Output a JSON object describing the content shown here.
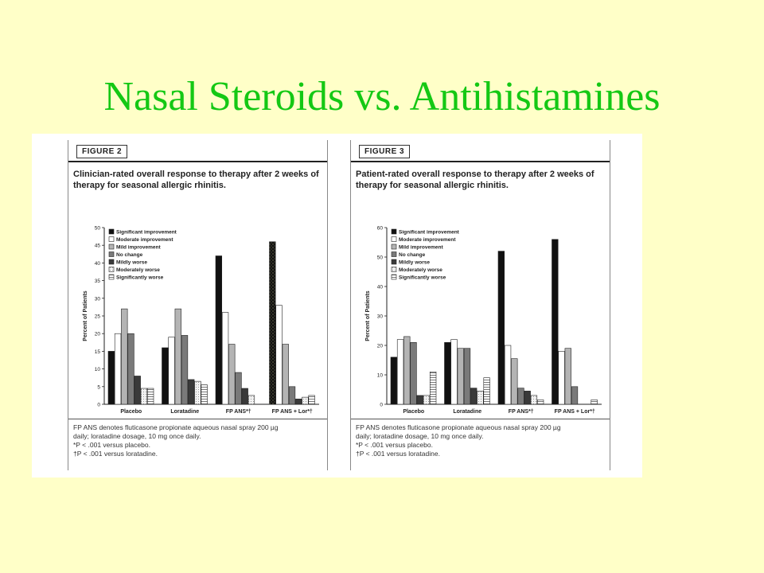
{
  "slide_title": "Nasal Steroids vs. Antihistamines",
  "colors": {
    "background": "#ffffc8",
    "title": "#14c814"
  },
  "figures": [
    {
      "tag": "FIGURE 2",
      "caption": "Clinician-rated overall response to therapy after 2 weeks of therapy for seasonal allergic rhinitis.",
      "footnotes": [
        "FP ANS denotes fluticasone propionate aqueous nasal spray 200 µg",
        "daily; loratadine dosage, 10 mg once daily.",
        "*P < .001 versus placebo.",
        "†P < .001 versus loratadine."
      ]
    },
    {
      "tag": "FIGURE 3",
      "caption": "Patient-rated overall response to therapy after 2 weeks of therapy for seasonal allergic rhinitis.",
      "footnotes": [
        "FP ANS denotes fluticasone propionate aqueous nasal spray 200 µg",
        "daily; loratadine dosage, 10 mg once daily.",
        "*P < .001 versus placebo.",
        "†P < .001 versus loratadine."
      ]
    }
  ],
  "chart_data": [
    {
      "type": "bar",
      "ylabel": "Percent of Patients",
      "ylim": [
        0,
        50
      ],
      "yticks": [
        0,
        5,
        10,
        15,
        20,
        25,
        30,
        35,
        40,
        45,
        50
      ],
      "legend_position": "top-left",
      "categories": [
        "Placebo",
        "Loratadine",
        "FP ANS*†",
        "FP ANS + Lor*†"
      ],
      "series": [
        {
          "name": "Significant improvement",
          "values": [
            15,
            16,
            42,
            46
          ]
        },
        {
          "name": "Moderate improvement",
          "values": [
            20,
            19,
            26,
            28
          ]
        },
        {
          "name": "Mild improvement",
          "values": [
            27,
            27,
            17,
            17
          ]
        },
        {
          "name": "No change",
          "values": [
            20,
            19.5,
            9,
            5
          ]
        },
        {
          "name": "Mildly worse",
          "values": [
            8,
            7,
            4.5,
            1.5
          ]
        },
        {
          "name": "Moderately worse",
          "values": [
            4.5,
            6.5,
            2.5,
            2
          ]
        },
        {
          "name": "Significantly worse",
          "values": [
            4.5,
            5.5,
            0,
            2.5
          ]
        }
      ]
    },
    {
      "type": "bar",
      "ylabel": "Percent of Patients",
      "ylim": [
        0,
        60
      ],
      "yticks": [
        0,
        10,
        20,
        30,
        40,
        50,
        60
      ],
      "legend_position": "top-left",
      "categories": [
        "Placebo",
        "Loratadine",
        "FP ANS*†",
        "FP ANS + Lor*†"
      ],
      "series": [
        {
          "name": "Significant improvement",
          "values": [
            16,
            21,
            52,
            56
          ]
        },
        {
          "name": "Moderate improvement",
          "values": [
            22,
            22,
            20,
            18
          ]
        },
        {
          "name": "Mild improvement",
          "values": [
            23,
            19,
            15.5,
            19
          ]
        },
        {
          "name": "No change",
          "values": [
            21,
            19,
            5.5,
            6
          ]
        },
        {
          "name": "Mildly worse",
          "values": [
            3,
            5.5,
            4.5,
            0
          ]
        },
        {
          "name": "Moderately worse",
          "values": [
            3,
            4.5,
            3,
            0
          ]
        },
        {
          "name": "Significantly worse",
          "values": [
            11,
            9,
            1.5,
            1.5
          ]
        }
      ]
    }
  ]
}
